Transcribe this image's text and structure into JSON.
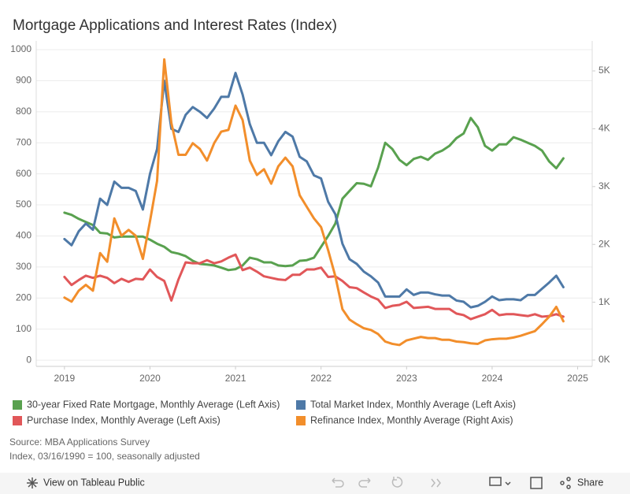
{
  "chart_data": {
    "type": "line",
    "title": "Mortgage Applications and Interest Rates (Index)",
    "x": [
      2019,
      2019.083,
      2019.167,
      2019.25,
      2019.333,
      2019.417,
      2019.5,
      2019.583,
      2019.667,
      2019.75,
      2019.833,
      2019.917,
      2020,
      2020.083,
      2020.167,
      2020.25,
      2020.333,
      2020.417,
      2020.5,
      2020.583,
      2020.667,
      2020.75,
      2020.833,
      2020.917,
      2021,
      2021.083,
      2021.167,
      2021.25,
      2021.333,
      2021.417,
      2021.5,
      2021.583,
      2021.667,
      2021.75,
      2021.833,
      2021.917,
      2022,
      2022.083,
      2022.167,
      2022.25,
      2022.333,
      2022.417,
      2022.5,
      2022.583,
      2022.667,
      2022.75,
      2022.833,
      2022.917,
      2023,
      2023.083,
      2023.167,
      2023.25,
      2023.333,
      2023.417,
      2023.5,
      2023.583,
      2023.667,
      2023.75,
      2023.833,
      2023.917,
      2024,
      2024.083,
      2024.167,
      2024.25,
      2024.333,
      2024.417,
      2024.5,
      2024.583,
      2024.667,
      2024.75,
      2024.833
    ],
    "xlim": [
      2018.67,
      2025.17
    ],
    "xticks": [
      2019,
      2020,
      2021,
      2022,
      2023,
      2024,
      2025
    ],
    "ylim": [
      -20,
      1000
    ],
    "yticks": [
      0,
      100,
      200,
      300,
      400,
      500,
      600,
      700,
      800,
      900,
      1000
    ],
    "y2lim": [
      -109,
      5368
    ],
    "y2ticks": [
      {
        "value": 0,
        "label": "0K"
      },
      {
        "value": 1000,
        "label": "1K"
      },
      {
        "value": 2000,
        "label": "2K"
      },
      {
        "value": 3000,
        "label": "3K"
      },
      {
        "value": 4000,
        "label": "4K"
      },
      {
        "value": 5000,
        "label": "5K"
      }
    ],
    "grid": true,
    "legend": "bottom",
    "series": [
      {
        "name": "30-year Fixed Rate Mortgage, Monthly Average (Left Axis)",
        "color": "#59a14f",
        "axis": "y",
        "values": [
          475,
          468,
          455,
          445,
          435,
          410,
          408,
          395,
          398,
          398,
          398,
          398,
          388,
          375,
          365,
          348,
          343,
          335,
          320,
          310,
          308,
          305,
          298,
          290,
          293,
          305,
          330,
          325,
          315,
          315,
          305,
          303,
          305,
          320,
          322,
          330,
          365,
          400,
          440,
          520,
          545,
          570,
          568,
          560,
          620,
          700,
          680,
          645,
          628,
          648,
          655,
          645,
          665,
          675,
          690,
          715,
          730,
          780,
          750,
          690,
          675,
          695,
          695,
          718,
          710,
          700,
          690,
          675,
          640,
          618,
          650
        ]
      },
      {
        "name": "Total Market Index, Monthly Average (Left Axis)",
        "color": "#4e79a7",
        "axis": "y",
        "values": [
          390,
          370,
          415,
          440,
          420,
          520,
          500,
          575,
          555,
          555,
          545,
          485,
          600,
          680,
          900,
          745,
          735,
          790,
          815,
          800,
          780,
          810,
          848,
          848,
          925,
          855,
          760,
          700,
          700,
          660,
          705,
          735,
          720,
          655,
          640,
          595,
          585,
          510,
          470,
          375,
          325,
          310,
          285,
          270,
          250,
          205,
          205,
          205,
          228,
          210,
          218,
          218,
          212,
          208,
          208,
          192,
          188,
          170,
          175,
          188,
          205,
          193,
          196,
          196,
          193,
          210,
          210,
          230,
          250,
          272,
          235
        ]
      },
      {
        "name": "Purchase Index, Monthly Average (Left Axis)",
        "color": "#e15759",
        "axis": "y",
        "values": [
          268,
          242,
          258,
          272,
          265,
          272,
          265,
          248,
          262,
          252,
          262,
          260,
          292,
          268,
          255,
          192,
          260,
          315,
          312,
          312,
          322,
          312,
          318,
          330,
          340,
          290,
          298,
          285,
          270,
          265,
          260,
          258,
          275,
          275,
          292,
          292,
          298,
          268,
          270,
          255,
          235,
          232,
          218,
          205,
          195,
          168,
          175,
          178,
          188,
          168,
          170,
          172,
          165,
          165,
          165,
          150,
          145,
          132,
          140,
          148,
          162,
          145,
          148,
          148,
          145,
          142,
          148,
          140,
          142,
          148,
          140
        ]
      },
      {
        "name": "Refinance Index, Monthly Average (Right Axis)",
        "color": "#f28e2b",
        "axis": "y2",
        "values": [
          1080,
          1010,
          1200,
          1300,
          1200,
          1850,
          1700,
          2450,
          2150,
          2250,
          2150,
          1750,
          2400,
          3100,
          5200,
          4100,
          3550,
          3550,
          3750,
          3650,
          3450,
          3750,
          3950,
          3980,
          4400,
          4150,
          3450,
          3200,
          3300,
          3050,
          3350,
          3500,
          3350,
          2850,
          2650,
          2450,
          2300,
          1900,
          1450,
          880,
          700,
          620,
          550,
          520,
          450,
          320,
          280,
          260,
          340,
          370,
          400,
          380,
          380,
          350,
          350,
          320,
          310,
          290,
          280,
          340,
          360,
          370,
          370,
          390,
          420,
          460,
          500,
          620,
          750,
          920,
          670
        ]
      }
    ],
    "notes": [
      "Source: MBA Applications Survey",
      "Index, 03/16/1990 = 100, seasonally adjusted"
    ]
  },
  "toolbar": {
    "view_link": "View on Tableau Public",
    "share": "Share"
  }
}
